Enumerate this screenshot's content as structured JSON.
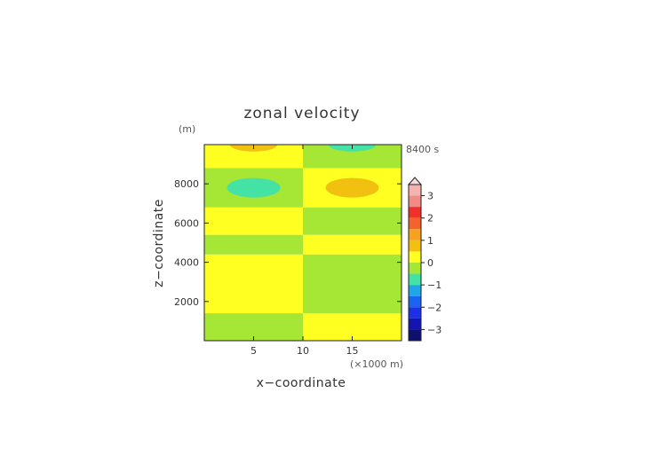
{
  "chart_data": {
    "type": "heatmap",
    "title": "zonal velocity",
    "xlabel": "x−coordinate",
    "ylabel": "z−coordinate",
    "y_unit_label": "(m)",
    "x_unit_label": "(×1000 m)",
    "time_label": "8400 s",
    "xlim": [
      0,
      20
    ],
    "ylim": [
      0,
      10000
    ],
    "x_ticks": [
      5,
      10,
      15
    ],
    "y_ticks": [
      2000,
      4000,
      6000,
      8000
    ],
    "colorbar": {
      "ticks": [
        "3",
        "2",
        "1",
        "0",
        "−1",
        "−2",
        "−3"
      ],
      "levels": [
        {
          "from": 3.0,
          "to": 3.5,
          "color": "#f4b3b0"
        },
        {
          "from": 2.5,
          "to": 3.0,
          "color": "#f28a86"
        },
        {
          "from": 2.0,
          "to": 2.5,
          "color": "#f0302a"
        },
        {
          "from": 1.5,
          "to": 2.0,
          "color": "#f5632d"
        },
        {
          "from": 1.0,
          "to": 1.5,
          "color": "#f7a11e"
        },
        {
          "from": 0.5,
          "to": 1.0,
          "color": "#f2c011"
        },
        {
          "from": 0.0,
          "to": 0.5,
          "color": "#ffff22"
        },
        {
          "from": -0.5,
          "to": 0.0,
          "color": "#a6e634"
        },
        {
          "from": -1.0,
          "to": -0.5,
          "color": "#44e2a5"
        },
        {
          "from": -1.5,
          "to": -1.0,
          "color": "#1ea6e8"
        },
        {
          "from": -2.0,
          "to": -1.5,
          "color": "#1b64ef"
        },
        {
          "from": -2.5,
          "to": -2.0,
          "color": "#1a2fe6"
        },
        {
          "from": -3.0,
          "to": -2.5,
          "color": "#1414b0"
        },
        {
          "from": -3.5,
          "to": -3.0,
          "color": "#0f0f6e"
        }
      ],
      "triangle_color": "#f8dcdc"
    },
    "regions": [
      {
        "x0": 0,
        "x1": 10,
        "z0": 0,
        "z1": 1400,
        "value": -0.3
      },
      {
        "x0": 0,
        "x1": 10,
        "z0": 1400,
        "z1": 4400,
        "value": 0.2
      },
      {
        "x0": 0,
        "x1": 10,
        "z0": 4400,
        "z1": 5400,
        "value": -0.3
      },
      {
        "x0": 0,
        "x1": 10,
        "z0": 5400,
        "z1": 6800,
        "value": 0.2
      },
      {
        "x0": 0,
        "x1": 10,
        "z0": 6800,
        "z1": 8800,
        "value": -0.3
      },
      {
        "x0": 0,
        "x1": 10,
        "z0": 8800,
        "z1": 10000,
        "value": 0.2
      },
      {
        "x0": 10,
        "x1": 20,
        "z0": 0,
        "z1": 1400,
        "value": 0.2
      },
      {
        "x0": 10,
        "x1": 20,
        "z0": 1400,
        "z1": 4400,
        "value": -0.3
      },
      {
        "x0": 10,
        "x1": 20,
        "z0": 4400,
        "z1": 5400,
        "value": 0.2
      },
      {
        "x0": 10,
        "x1": 20,
        "z0": 5400,
        "z1": 6800,
        "value": -0.3
      },
      {
        "x0": 10,
        "x1": 20,
        "z0": 6800,
        "z1": 8800,
        "value": 0.2
      },
      {
        "x0": 10,
        "x1": 20,
        "z0": 8800,
        "z1": 10000,
        "value": -0.3
      }
    ],
    "anomalies": [
      {
        "x": 5,
        "z": 7800,
        "rx": 2.7,
        "rz": 500,
        "value": -0.8
      },
      {
        "x": 15,
        "z": 7800,
        "rx": 2.7,
        "rz": 500,
        "value": 0.8
      },
      {
        "x": 5,
        "z": 10000,
        "rx": 2.4,
        "rz": 350,
        "value": 0.8
      },
      {
        "x": 15,
        "z": 10000,
        "rx": 2.4,
        "rz": 350,
        "value": -0.8
      }
    ]
  }
}
